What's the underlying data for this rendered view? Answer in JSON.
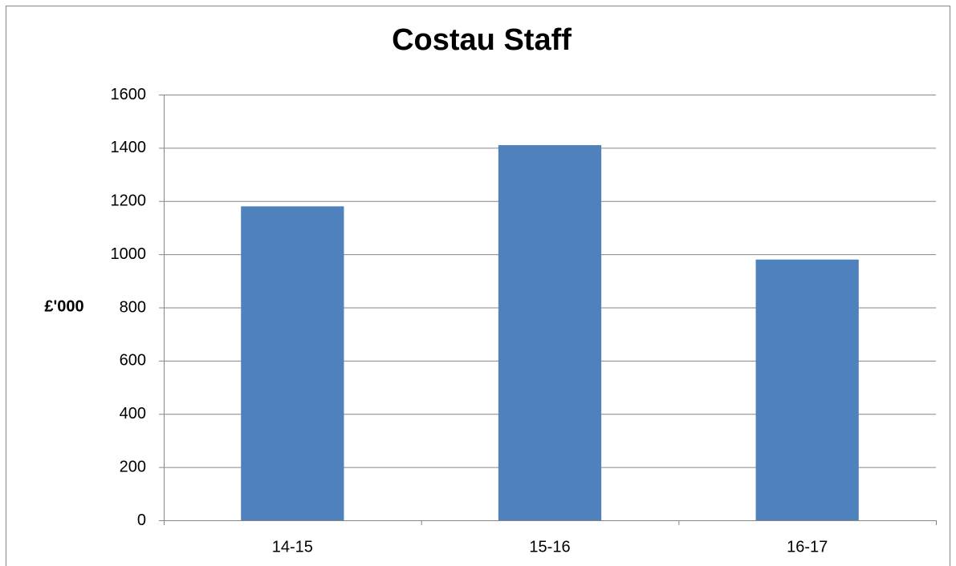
{
  "chart_data": {
    "type": "bar",
    "title": "Costau Staff",
    "y_label": "£'000",
    "categories": [
      "14-15",
      "15-16",
      "16-17"
    ],
    "values": [
      1180,
      1410,
      980
    ],
    "color": "#4f81bd",
    "ylim": [
      0,
      1600
    ],
    "yticks": [
      0,
      200,
      400,
      600,
      800,
      1000,
      1200,
      1400,
      1600
    ],
    "grid": true
  }
}
